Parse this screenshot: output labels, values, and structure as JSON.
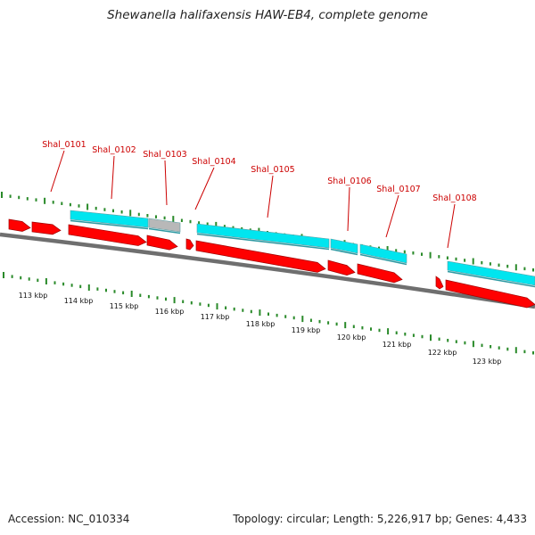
{
  "title": "Shewanella halifaxensis HAW-EB4, complete genome",
  "accession_text": "Accession: NC_010334",
  "summary_text": "Topology: circular; Length: 5,226,917 bp; Genes: 4,433",
  "colors": {
    "gene_label": "#cc0000",
    "cds": "#ff0000",
    "feature_cyan": "#00e5ef",
    "feature_grey": "#b8b8b8",
    "tick": "#2a8a2a",
    "backbone": "#808080"
  },
  "gene_labels": [
    "Shal_0101",
    "Shal_0102",
    "Shal_0103",
    "Shal_0104",
    "Shal_0105",
    "Shal_0106",
    "Shal_0107",
    "Shal_0108"
  ],
  "kbp_labels": [
    "113 kbp",
    "114 kbp",
    "115 kbp",
    "116 kbp",
    "117 kbp",
    "118 kbp",
    "119 kbp",
    "120 kbp",
    "121 kbp",
    "122 kbp",
    "123 kbp"
  ]
}
